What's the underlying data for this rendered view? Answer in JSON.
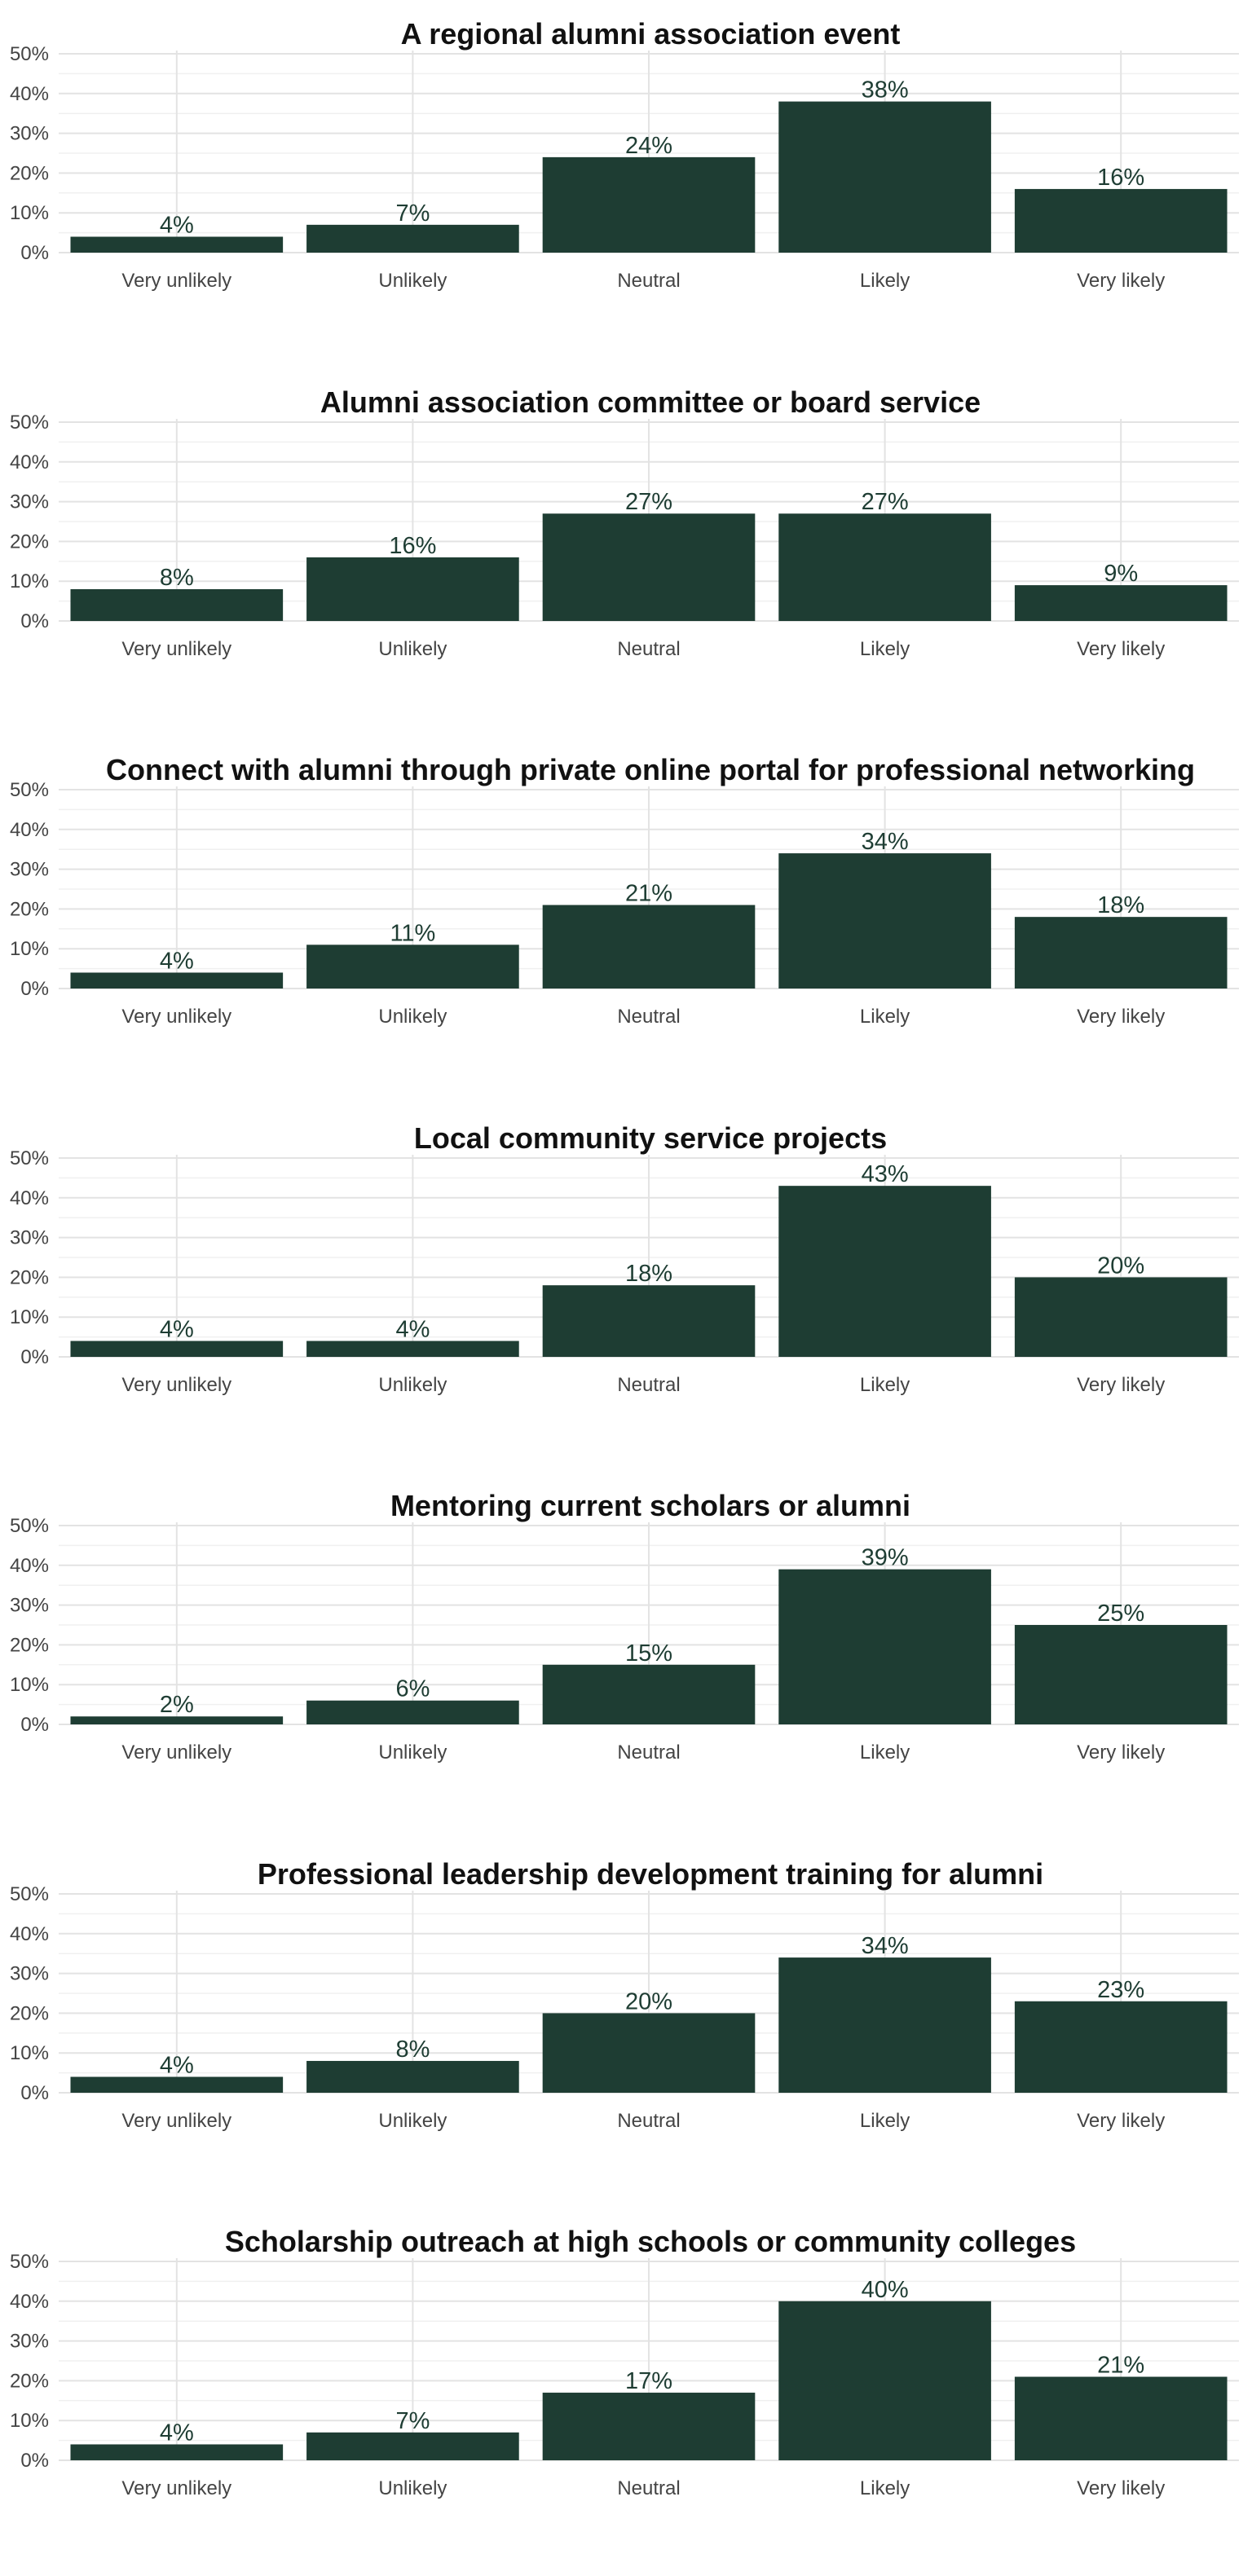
{
  "bar_color": "#1e3d33",
  "chart_data": [
    {
      "type": "bar",
      "title": "A regional alumni association event",
      "categories": [
        "Very unlikely",
        "Unlikely",
        "Neutral",
        "Likely",
        "Very likely"
      ],
      "values": [
        4,
        7,
        24,
        38,
        16
      ],
      "data_labels": [
        "4%",
        "7%",
        "24%",
        "38%",
        "16%"
      ],
      "yticks": [
        "0%",
        "10%",
        "20%",
        "30%",
        "40%",
        "50%"
      ],
      "ylim": [
        0,
        50
      ],
      "grid": true
    },
    {
      "type": "bar",
      "title": "Alumni association committee or board service",
      "categories": [
        "Very unlikely",
        "Unlikely",
        "Neutral",
        "Likely",
        "Very likely"
      ],
      "values": [
        8,
        16,
        27,
        27,
        9
      ],
      "data_labels": [
        "8%",
        "16%",
        "27%",
        "27%",
        "9%"
      ],
      "yticks": [
        "0%",
        "10%",
        "20%",
        "30%",
        "40%",
        "50%"
      ],
      "ylim": [
        0,
        50
      ],
      "grid": true
    },
    {
      "type": "bar",
      "title": "Connect with alumni through private online portal for professional networking",
      "categories": [
        "Very unlikely",
        "Unlikely",
        "Neutral",
        "Likely",
        "Very likely"
      ],
      "values": [
        4,
        11,
        21,
        34,
        18
      ],
      "data_labels": [
        "4%",
        "11%",
        "21%",
        "34%",
        "18%"
      ],
      "yticks": [
        "0%",
        "10%",
        "20%",
        "30%",
        "40%",
        "50%"
      ],
      "ylim": [
        0,
        50
      ],
      "grid": true
    },
    {
      "type": "bar",
      "title": "Local community service projects",
      "categories": [
        "Very unlikely",
        "Unlikely",
        "Neutral",
        "Likely",
        "Very likely"
      ],
      "values": [
        4,
        4,
        18,
        43,
        20
      ],
      "data_labels": [
        "4%",
        "4%",
        "18%",
        "43%",
        "20%"
      ],
      "yticks": [
        "0%",
        "10%",
        "20%",
        "30%",
        "40%",
        "50%"
      ],
      "ylim": [
        0,
        50
      ],
      "grid": true
    },
    {
      "type": "bar",
      "title": "Mentoring current scholars or alumni",
      "categories": [
        "Very unlikely",
        "Unlikely",
        "Neutral",
        "Likely",
        "Very likely"
      ],
      "values": [
        2,
        6,
        15,
        39,
        25
      ],
      "data_labels": [
        "2%",
        "6%",
        "15%",
        "39%",
        "25%"
      ],
      "yticks": [
        "0%",
        "10%",
        "20%",
        "30%",
        "40%",
        "50%"
      ],
      "ylim": [
        0,
        50
      ],
      "grid": true
    },
    {
      "type": "bar",
      "title": "Professional leadership development training for alumni",
      "categories": [
        "Very unlikely",
        "Unlikely",
        "Neutral",
        "Likely",
        "Very likely"
      ],
      "values": [
        4,
        8,
        20,
        34,
        23
      ],
      "data_labels": [
        "4%",
        "8%",
        "20%",
        "34%",
        "23%"
      ],
      "yticks": [
        "0%",
        "10%",
        "20%",
        "30%",
        "40%",
        "50%"
      ],
      "ylim": [
        0,
        50
      ],
      "grid": true
    },
    {
      "type": "bar",
      "title": "Scholarship outreach at high schools or community colleges",
      "categories": [
        "Very unlikely",
        "Unlikely",
        "Neutral",
        "Likely",
        "Very likely"
      ],
      "values": [
        4,
        7,
        17,
        40,
        21
      ],
      "data_labels": [
        "4%",
        "7%",
        "17%",
        "40%",
        "21%"
      ],
      "yticks": [
        "0%",
        "10%",
        "20%",
        "30%",
        "40%",
        "50%"
      ],
      "ylim": [
        0,
        50
      ],
      "grid": true
    }
  ]
}
